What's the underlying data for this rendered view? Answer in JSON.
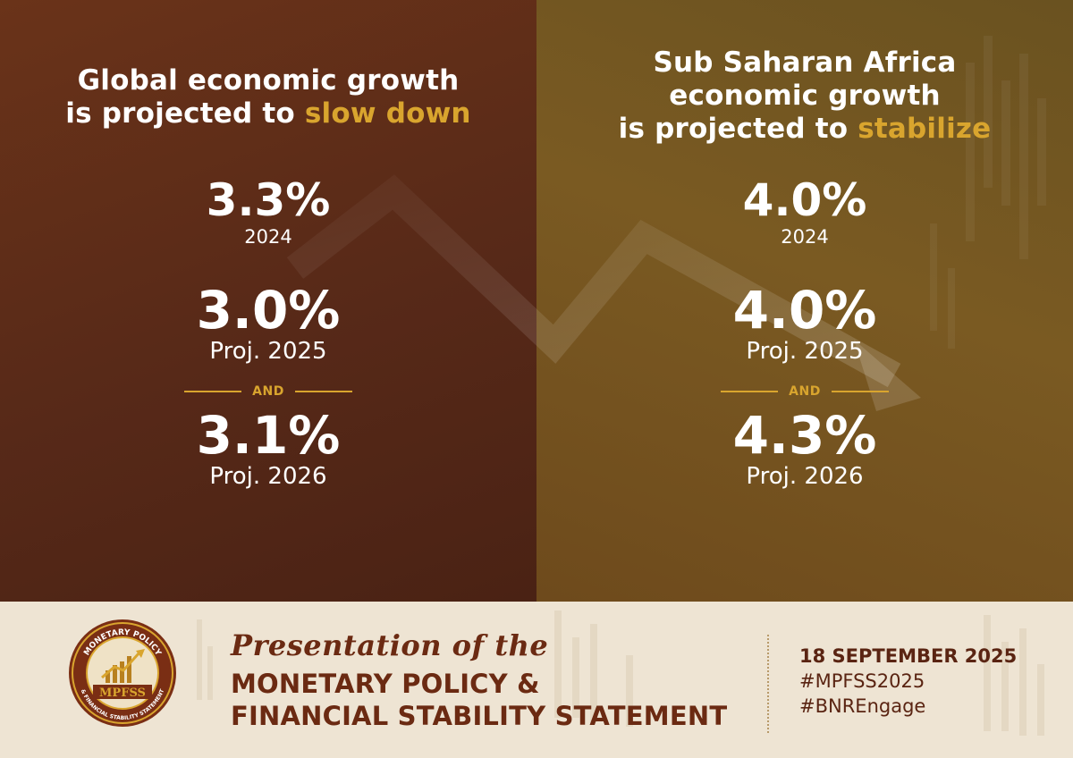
{
  "colors": {
    "left_panel": "#572918",
    "right_panel": "#7a5a22",
    "accent_gold": "#d9a52e",
    "footer_bg": "#eee4d3",
    "footer_text": "#6b2a12"
  },
  "left": {
    "heading_line1": "Global economic growth",
    "heading_line2_prefix": "is projected to ",
    "heading_line2_highlight": "slow down",
    "stats": [
      {
        "value": "3.3%",
        "label": "2024"
      },
      {
        "value": "3.0%",
        "label": "Proj. 2025"
      },
      {
        "value": "3.1%",
        "label": "Proj. 2026"
      }
    ],
    "and_label": "AND"
  },
  "right": {
    "heading_line1": "Sub Saharan Africa",
    "heading_line2": "economic growth",
    "heading_line3_prefix": "is projected to ",
    "heading_line3_highlight": "stabilize",
    "stats": [
      {
        "value": "4.0%",
        "label": "2024"
      },
      {
        "value": "4.0%",
        "label": "Proj. 2025"
      },
      {
        "value": "4.3%",
        "label": "Proj. 2026"
      }
    ],
    "and_label": "AND"
  },
  "footer": {
    "logo_text_top": "MONETARY POLICY",
    "logo_text_center": "MPFSS",
    "logo_text_bottom": "& FINANCIAL STABILITY STATEMENT",
    "presentation_script": "Presentation of the",
    "title_line1": "MONETARY POLICY &",
    "title_line2": "FINANCIAL STABILITY STATEMENT",
    "date": "18 SEPTEMBER 2025",
    "hashtag1": "#MPFSS2025",
    "hashtag2": "#BNREngage"
  }
}
